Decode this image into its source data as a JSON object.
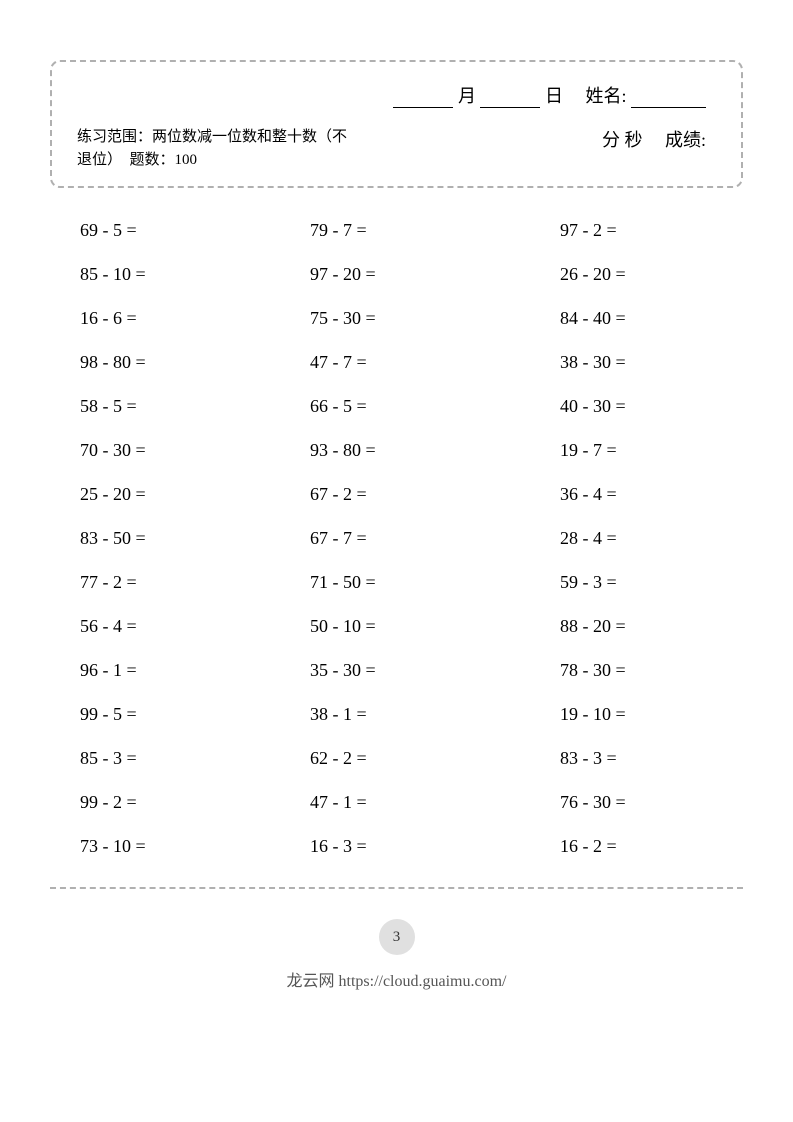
{
  "header": {
    "month_label": "月",
    "day_label": "日",
    "name_label": "姓名:",
    "minute_label": "分",
    "second_label": "秒",
    "score_label": "成绩:",
    "scope_text": "练习范围：两位数减一位数和整十数（不退位）　题数：100"
  },
  "problems": {
    "rows": [
      {
        "c1": "69 - 5 =",
        "c2": "79 - 7 =",
        "c3": "97 - 2 ="
      },
      {
        "c1": "85 - 10 =",
        "c2": "97 - 20 =",
        "c3": "26 - 20 ="
      },
      {
        "c1": "16 - 6 =",
        "c2": "75 - 30 =",
        "c3": "84 - 40 ="
      },
      {
        "c1": "98 - 80 =",
        "c2": "47 - 7 =",
        "c3": "38 - 30 ="
      },
      {
        "c1": "58 - 5 =",
        "c2": "66 - 5 =",
        "c3": "40 - 30 ="
      },
      {
        "c1": "70 - 30 =",
        "c2": "93 - 80 =",
        "c3": "19 - 7 ="
      },
      {
        "c1": "25 - 20 =",
        "c2": "67 - 2 =",
        "c3": "36 - 4 ="
      },
      {
        "c1": "83 - 50 =",
        "c2": "67 - 7 =",
        "c3": "28 - 4 ="
      },
      {
        "c1": "77 - 2 =",
        "c2": "71 - 50 =",
        "c3": "59 - 3 ="
      },
      {
        "c1": "56 - 4 =",
        "c2": "50 - 10 =",
        "c3": "88 - 20 ="
      },
      {
        "c1": "96 - 1 =",
        "c2": "35 - 30 =",
        "c3": "78 - 30 ="
      },
      {
        "c1": "99 - 5 =",
        "c2": "38 - 1 =",
        "c3": "19 - 10 ="
      },
      {
        "c1": "85 - 3 =",
        "c2": "62 - 2 =",
        "c3": "83 - 3 ="
      },
      {
        "c1": "99 - 2 =",
        "c2": "47 - 1 =",
        "c3": "76 - 30 ="
      },
      {
        "c1": "73 - 10 =",
        "c2": "16 - 3 =",
        "c3": "16 - 2 ="
      }
    ]
  },
  "page_number": "3",
  "footer": "龙云网 https://cloud.guaimu.com/"
}
